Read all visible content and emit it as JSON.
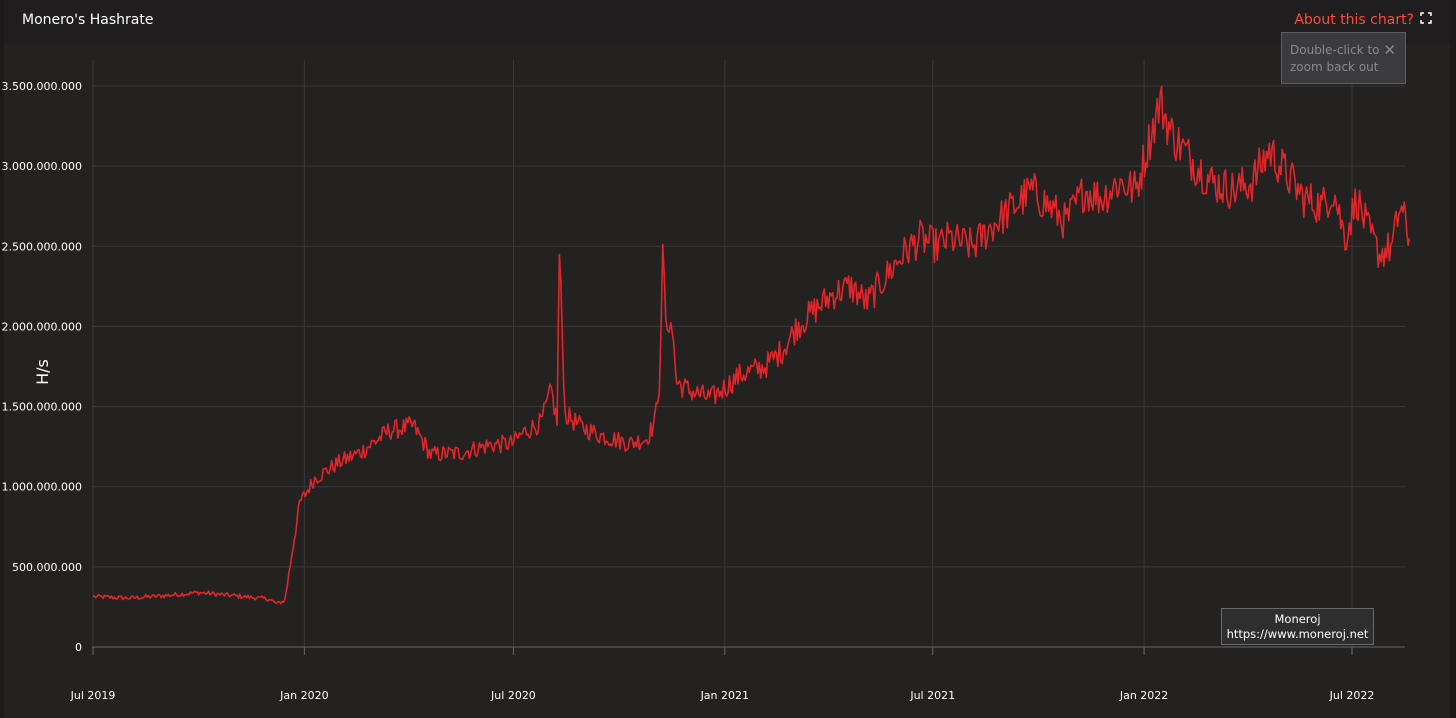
{
  "header": {
    "title": "Monero's Hashrate",
    "about_link": "About this chart?",
    "fullscreen_icon": "fullscreen-icon"
  },
  "zoom_tip": {
    "text": "Double-click to zoom back out",
    "close_icon": "close-icon",
    "close_glyph": "✕"
  },
  "credit": {
    "name": "Moneroj",
    "url": "https://www.moneroj.net"
  },
  "colors": {
    "line": "#e0262a",
    "background": "#242121",
    "grid": "#3a3838",
    "accent": "#ff4b3a"
  },
  "chart_data": {
    "type": "line",
    "title": "Monero's Hashrate",
    "xlabel": "",
    "ylabel": "H/s",
    "grid": true,
    "x_ticks": [
      "Jul 2019",
      "Jan 2020",
      "Jul 2020",
      "Jan 2021",
      "Jul 2021",
      "Jan 2022",
      "Jul 2022"
    ],
    "y_ticks": [
      "0",
      "500.000.000",
      "1.000.000.000",
      "1.500.000.000",
      "2.000.000.000",
      "2.500.000.000",
      "3.000.000.000",
      "3.500.000.000"
    ],
    "ylim": [
      0,
      3500000000
    ],
    "xlim": [
      "2019-07-01",
      "2022-08-20"
    ],
    "series": [
      {
        "x": [
          "2019-07-01",
          "2019-08-01",
          "2019-09-01",
          "2019-10-01",
          "2019-11-01",
          "2019-12-01",
          "2019-12-08",
          "2019-12-15",
          "2019-12-28",
          "2020-01-10",
          "2020-01-31",
          "2020-02-20",
          "2020-03-15",
          "2020-04-05",
          "2020-04-20",
          "2020-05-15",
          "2020-06-10",
          "2020-06-30",
          "2020-07-10",
          "2020-07-25",
          "2020-08-03",
          "2020-08-08",
          "2020-08-10",
          "2020-08-15",
          "2020-08-30",
          "2020-09-15",
          "2020-10-10",
          "2020-10-25",
          "2020-11-01",
          "2020-11-05",
          "2020-11-08",
          "2020-11-12",
          "2020-11-15",
          "2020-11-20",
          "2020-12-01",
          "2020-12-20",
          "2021-01-15",
          "2021-02-05",
          "2021-02-20",
          "2021-03-05",
          "2021-03-20",
          "2021-04-05",
          "2021-04-20",
          "2021-05-05",
          "2021-05-20",
          "2021-06-05",
          "2021-06-20",
          "2021-07-05",
          "2021-07-15",
          "2021-08-05",
          "2021-08-25",
          "2021-09-10",
          "2021-09-25",
          "2021-10-10",
          "2021-10-25",
          "2021-11-10",
          "2021-11-25",
          "2021-12-10",
          "2021-12-25",
          "2022-01-05",
          "2022-01-15",
          "2022-01-25",
          "2022-02-10",
          "2022-03-01",
          "2022-03-20",
          "2022-04-05",
          "2022-04-20",
          "2022-05-05",
          "2022-05-20",
          "2022-06-05",
          "2022-06-15",
          "2022-06-25",
          "2022-07-05",
          "2022-07-15",
          "2022-07-25",
          "2022-08-05",
          "2022-08-12",
          "2022-08-20"
        ],
        "values": [
          315000000,
          305000000,
          320000000,
          340000000,
          320000000,
          300000000,
          270000000,
          290000000,
          900000000,
          1050000000,
          1150000000,
          1220000000,
          1350000000,
          1380000000,
          1200000000,
          1210000000,
          1260000000,
          1270000000,
          1340000000,
          1400000000,
          1600000000,
          1400000000,
          2450000000,
          1450000000,
          1370000000,
          1320000000,
          1270000000,
          1300000000,
          1400000000,
          1650000000,
          2420000000,
          1900000000,
          2100000000,
          1650000000,
          1600000000,
          1550000000,
          1700000000,
          1750000000,
          1850000000,
          2000000000,
          2100000000,
          2200000000,
          2250000000,
          2150000000,
          2300000000,
          2450000000,
          2550000000,
          2500000000,
          2550000000,
          2500000000,
          2650000000,
          2750000000,
          2850000000,
          2750000000,
          2650000000,
          2850000000,
          2800000000,
          2900000000,
          2850000000,
          3150000000,
          3400000000,
          3200000000,
          3050000000,
          2900000000,
          2850000000,
          2900000000,
          3100000000,
          2950000000,
          2800000000,
          2750000000,
          2850000000,
          2550000000,
          2800000000,
          2600000000,
          2450000000,
          2500000000,
          2750000000,
          2550000000
        ]
      }
    ]
  }
}
